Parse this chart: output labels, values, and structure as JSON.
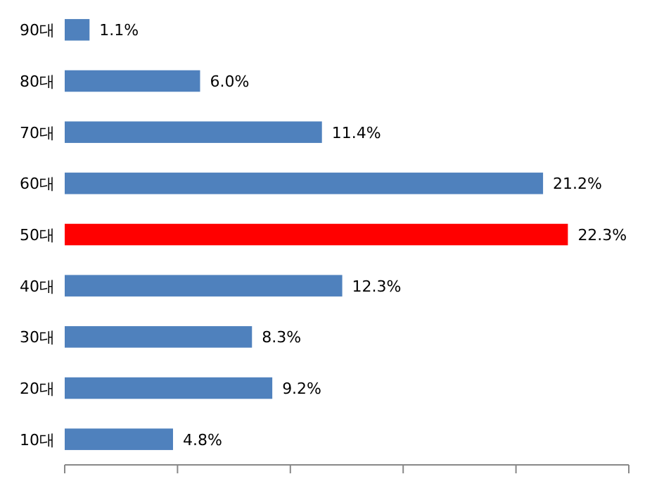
{
  "chart_data": {
    "type": "bar",
    "orientation": "horizontal",
    "categories": [
      "90대",
      "80대",
      "70대",
      "60대",
      "50대",
      "40대",
      "30대",
      "20대",
      "10대"
    ],
    "values": [
      1.1,
      6.0,
      11.4,
      21.2,
      22.3,
      12.3,
      8.3,
      9.2,
      4.8
    ],
    "colors": [
      "#4f81bd",
      "#4f81bd",
      "#4f81bd",
      "#4f81bd",
      "#ff0000",
      "#4f81bd",
      "#4f81bd",
      "#4f81bd",
      "#4f81bd"
    ],
    "value_labels": [
      "1.1%",
      "6.0%",
      "11.4%",
      "21.2%",
      "22.3%",
      "12.3%",
      "8.3%",
      "9.2%",
      "4.8%"
    ],
    "xlim": [
      0,
      25
    ],
    "xticks": [
      {
        "value": 0,
        "label": null
      },
      {
        "value": 5,
        "label": null
      },
      {
        "value": 10,
        "label": null
      },
      {
        "value": 15,
        "label": null
      },
      {
        "value": 20,
        "label": null
      },
      {
        "value": 25,
        "label": null
      }
    ],
    "tick_labels": "y",
    "grid": false
  }
}
